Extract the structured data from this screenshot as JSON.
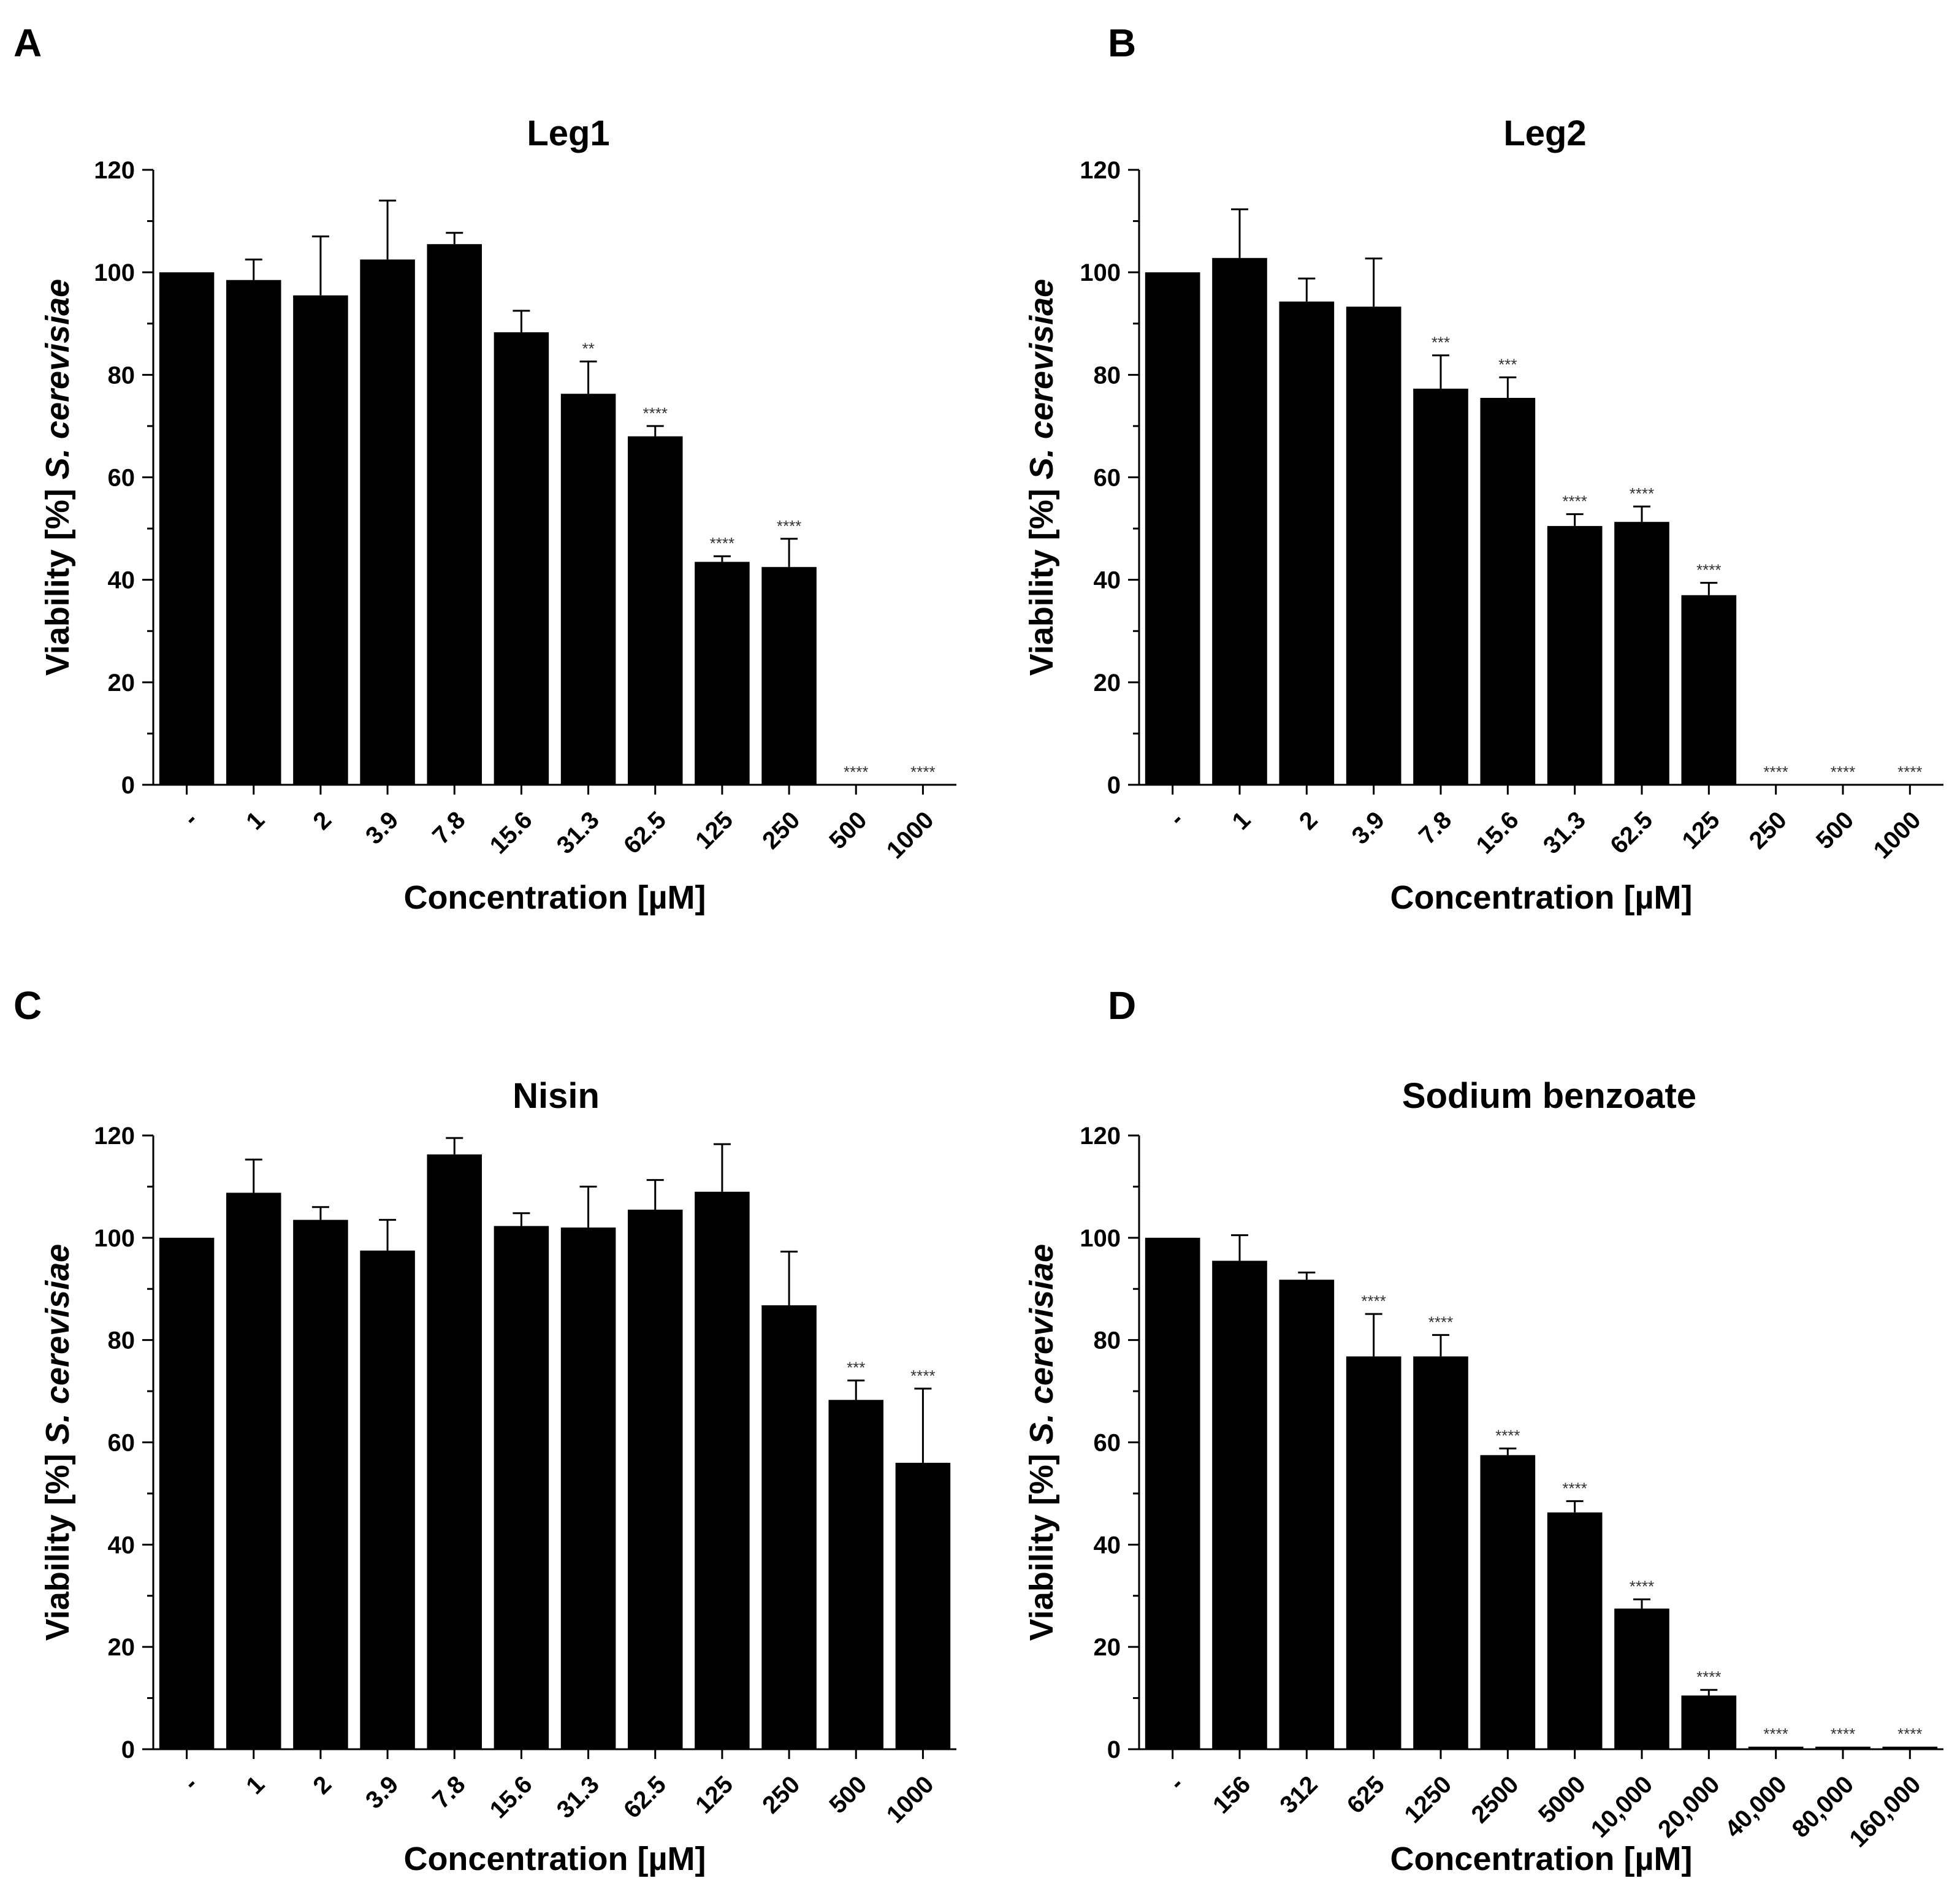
{
  "chart_data": [
    {
      "panel": "A",
      "type": "bar",
      "title": "Leg1",
      "xlabel": "Concentration [µM]",
      "ylabel_parts": [
        "Viability [%] ",
        "S. cerevisiae"
      ],
      "ylim": [
        0,
        120
      ],
      "yticks": [
        "0",
        "20",
        "40",
        "60",
        "80",
        "100",
        "120"
      ],
      "categories": [
        "-",
        "1",
        "2",
        "3.9",
        "7.8",
        "15.6",
        "31.3",
        "62.5",
        "125",
        "250",
        "500",
        "1000"
      ],
      "values": [
        100,
        98.5,
        95.5,
        102.5,
        105.5,
        88.3,
        76.3,
        68,
        43.5,
        42.5,
        0,
        0
      ],
      "errors": [
        0,
        4,
        11.5,
        11.5,
        2.2,
        4.2,
        6.3,
        2,
        1.1,
        5.5,
        0,
        0
      ],
      "significance": [
        "",
        "",
        "",
        "",
        "",
        "",
        "**",
        "****",
        "****",
        "****",
        "****",
        "****"
      ]
    },
    {
      "panel": "B",
      "type": "bar",
      "title": "Leg2",
      "xlabel": "Concentration [µM]",
      "ylabel_parts": [
        "Viability [%] ",
        "S. cerevisiae"
      ],
      "ylim": [
        0,
        120
      ],
      "yticks": [
        "0",
        "20",
        "40",
        "60",
        "80",
        "100",
        "120"
      ],
      "categories": [
        "-",
        "1",
        "2",
        "3.9",
        "7.8",
        "15.6",
        "31.3",
        "62.5",
        "125",
        "250",
        "500",
        "1000"
      ],
      "values": [
        100,
        102.8,
        94.3,
        93.3,
        77.3,
        75.5,
        50.5,
        51.3,
        37,
        0,
        0,
        0
      ],
      "errors": [
        0,
        9.5,
        4.5,
        9.4,
        6.5,
        4,
        2.3,
        3,
        2.4,
        0,
        0,
        0
      ],
      "significance": [
        "",
        "",
        "",
        "",
        "***",
        "***",
        "****",
        "****",
        "****",
        "****",
        "****",
        "****"
      ]
    },
    {
      "panel": "C",
      "type": "bar",
      "title": "Nisin",
      "xlabel": "Concentration [µM]",
      "ylabel_parts": [
        "Viability [%] ",
        "S. cerevisiae"
      ],
      "ylim": [
        0,
        120
      ],
      "yticks": [
        "0",
        "20",
        "40",
        "60",
        "80",
        "100",
        "120"
      ],
      "categories": [
        "-",
        "1",
        "2",
        "3.9",
        "7.8",
        "15.6",
        "31.3",
        "62.5",
        "125",
        "250",
        "500",
        "1000"
      ],
      "values": [
        100,
        108.8,
        103.5,
        97.5,
        116.3,
        102.3,
        102,
        105.5,
        109,
        86.8,
        68.3,
        56
      ],
      "errors": [
        0,
        6.5,
        2.5,
        6,
        3.2,
        2.5,
        8,
        5.8,
        9.3,
        10.5,
        3.8,
        14.5
      ],
      "significance": [
        "",
        "",
        "",
        "",
        "",
        "",
        "",
        "",
        "",
        "",
        "***",
        "****"
      ]
    },
    {
      "panel": "D",
      "type": "bar",
      "title": "Sodium benzoate",
      "xlabel": "Concentration [µM]",
      "ylabel_parts": [
        "Viability [%] ",
        "S. cerevisiae"
      ],
      "ylim": [
        0,
        120
      ],
      "yticks": [
        "0",
        "20",
        "40",
        "60",
        "80",
        "100",
        "120"
      ],
      "categories": [
        "-",
        "156",
        "312",
        "625",
        "1250",
        "2500",
        "5000",
        "10,000",
        "20,000",
        "40,000",
        "80,000",
        "160,000"
      ],
      "values": [
        100,
        95.5,
        91.8,
        76.8,
        76.8,
        57.5,
        46.3,
        27.5,
        10.5,
        0.5,
        0.5,
        0.5
      ],
      "errors": [
        0,
        5,
        1.4,
        8.3,
        4.2,
        1.3,
        2.2,
        1.8,
        1.1,
        0,
        0,
        0
      ],
      "significance": [
        "",
        "",
        "",
        "****",
        "****",
        "****",
        "****",
        "****",
        "****",
        "****",
        "****",
        "****"
      ]
    }
  ]
}
